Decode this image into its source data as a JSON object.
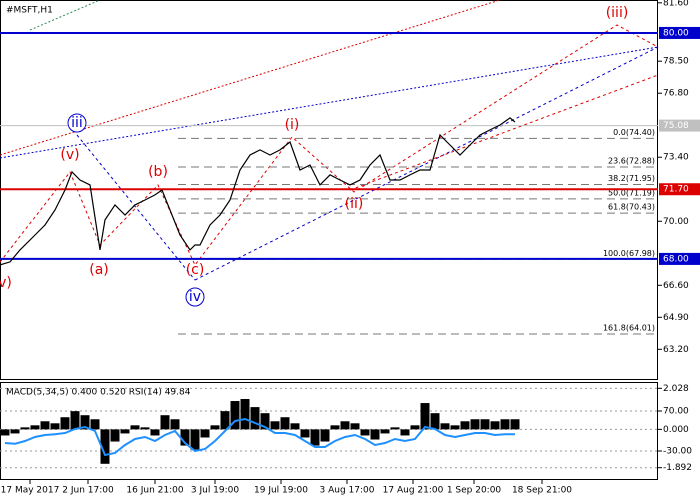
{
  "chart_data": [
    {
      "type": "line",
      "title": "#MSFT,H1",
      "x": [
        0,
        10,
        20,
        35,
        45,
        55,
        65,
        72,
        80,
        90,
        100,
        105,
        115,
        125,
        135,
        145,
        155,
        162,
        170,
        180,
        190,
        195,
        200,
        210,
        220,
        230,
        240,
        250,
        260,
        270,
        280,
        290,
        300,
        310,
        320,
        330,
        340,
        350,
        360,
        370,
        380,
        390,
        400,
        410,
        420,
        430,
        440,
        450,
        460,
        470,
        480,
        490,
        500,
        510,
        515
      ],
      "values": [
        67.68,
        67.84,
        68.48,
        69.27,
        69.8,
        70.6,
        71.66,
        72.62,
        72.19,
        71.93,
        68.48,
        70.07,
        70.87,
        70.33,
        70.87,
        71.13,
        71.4,
        71.66,
        70.6,
        69.27,
        68.48,
        68.74,
        68.74,
        69.8,
        70.33,
        71.13,
        72.72,
        73.52,
        73.79,
        73.52,
        73.79,
        74.21,
        72.72,
        72.99,
        71.93,
        72.46,
        72.19,
        71.93,
        72.19,
        72.99,
        73.52,
        72.19,
        72.19,
        72.46,
        72.72,
        72.72,
        74.58,
        74.05,
        73.52,
        74.05,
        74.58,
        74.85,
        75.11,
        75.49,
        75.27
      ],
      "color": "#000000",
      "xlim": [
        0,
        658
      ],
      "xticks": [
        {
          "value": 30,
          "label": "17 May 2017"
        },
        {
          "value": 88,
          "label": "2 Jun 17:00"
        },
        {
          "value": 155,
          "label": "16 Jun 21:00"
        },
        {
          "value": 215,
          "label": "3 Jul 19:00"
        },
        {
          "value": 281,
          "label": "19 Jul 19:00"
        },
        {
          "value": 347,
          "label": "3 Aug 17:00"
        },
        {
          "value": 413,
          "label": "17 Aug 21:00"
        },
        {
          "value": 474,
          "label": "1 Sep 20:00"
        },
        {
          "value": 542,
          "label": "18 Sep 21:00"
        }
      ],
      "ylim": [
        61.57,
        81.75
      ],
      "yticks": [
        {
          "value": 81.6,
          "label": "81.60"
        },
        {
          "value": 78.5,
          "label": "78.50"
        },
        {
          "value": 76.8,
          "label": "76.80"
        },
        {
          "value": 73.4,
          "label": "73.40"
        },
        {
          "value": 70,
          "label": "70.00"
        },
        {
          "value": 66.6,
          "label": "66.60"
        },
        {
          "value": 64.9,
          "label": "64.90"
        },
        {
          "value": 63.2,
          "label": "63.20"
        }
      ],
      "grid": false,
      "hlines": [
        {
          "value": 80,
          "label": "80.00",
          "color": "#0000cc"
        },
        {
          "value": 71.7,
          "label": "71.70",
          "color": "#dd0000"
        },
        {
          "value": 68,
          "label": "68.00",
          "color": "#0000cc"
        }
      ],
      "current_price": {
        "value": 75.08,
        "label": "75.08",
        "color": "#c0c0c0"
      },
      "fib_levels": [
        {
          "label": "0.0(74.40)",
          "value": 74.4
        },
        {
          "label": "23.6(72.88)",
          "value": 72.88
        },
        {
          "label": "38.2(71.95)",
          "value": 71.95
        },
        {
          "label": "50.0(71.19)",
          "value": 71.19
        },
        {
          "label": "61.8(70.43)",
          "value": 70.43
        },
        {
          "label": "100.0(67.98)",
          "value": 67.98
        },
        {
          "label": "161.8(64.01)",
          "value": 64.01
        }
      ],
      "annotations": [
        {
          "text": "(iii)",
          "color": "#dd0000"
        },
        {
          "text": "iii",
          "color": "#0000cc"
        },
        {
          "text": "(v)",
          "color": "#dd0000"
        },
        {
          "text": "(b)",
          "color": "#dd0000"
        },
        {
          "text": "(a)",
          "color": "#dd0000"
        },
        {
          "text": "(c)",
          "color": "#dd0000"
        },
        {
          "text": "iv",
          "color": "#0000cc"
        },
        {
          "text": "(i)",
          "color": "#dd0000"
        },
        {
          "text": "(ii)",
          "color": "#dd0000"
        },
        {
          "text": "v)",
          "color": "#dd0000"
        }
      ]
    },
    {
      "type": "bar",
      "title": "MACD(5,34,5) 0.400 0.520 RSI(14) 49.84",
      "x": [
        5,
        15,
        25,
        35,
        45,
        55,
        65,
        75,
        85,
        95,
        105,
        115,
        125,
        135,
        145,
        155,
        165,
        175,
        185,
        195,
        205,
        215,
        225,
        235,
        245,
        255,
        265,
        275,
        285,
        295,
        305,
        315,
        325,
        335,
        345,
        355,
        365,
        375,
        385,
        395,
        405,
        415,
        425,
        435,
        445,
        455,
        465,
        475,
        485,
        495,
        505,
        515
      ],
      "xlim": [
        0,
        658
      ],
      "ylim": [
        -2.5,
        2.34
      ],
      "yticks": [
        {
          "value": 2.028,
          "label": "2.028"
        },
        {
          "value": 0,
          "label": "0.000"
        },
        {
          "value": -1.892,
          "label": "-1.892"
        }
      ],
      "y2lim": [
        -102.5,
        142.5
      ],
      "y2ticks": [
        {
          "value": 70,
          "label": "70.00"
        },
        {
          "value": -30,
          "label": "-30.00"
        }
      ],
      "series": [
        {
          "type": "bar",
          "color": "#000000",
          "values": [
            -0.3,
            -0.2,
            0.1,
            0.2,
            0.4,
            0.3,
            0.6,
            0.9,
            0.7,
            0.5,
            -1.7,
            -0.6,
            -0.2,
            0.2,
            0.1,
            -0.3,
            0.7,
            0.5,
            -0.8,
            -1.0,
            -0.4,
            0.2,
            0.9,
            1.4,
            1.5,
            1.1,
            0.8,
            0.4,
            0.6,
            0.3,
            -0.4,
            -0.8,
            -0.6,
            0.2,
            0.4,
            0.3,
            -0.3,
            -0.5,
            -0.2,
            0.1,
            -0.3,
            0.2,
            1.3,
            0.8,
            0.3,
            0.2,
            0.4,
            0.5,
            0.5,
            0.4,
            0.5,
            0.5
          ]
        },
        {
          "type": "line",
          "axis": "y2",
          "color": "#1e90ff",
          "values": [
            -10,
            -12,
            -5,
            5,
            10,
            12,
            15,
            25,
            30,
            20,
            -40,
            -35,
            -15,
            0,
            5,
            -5,
            10,
            20,
            -10,
            -30,
            -25,
            -5,
            20,
            45,
            50,
            40,
            30,
            15,
            15,
            10,
            -5,
            -20,
            -20,
            -5,
            5,
            10,
            0,
            -15,
            -10,
            0,
            -5,
            0,
            30,
            25,
            10,
            5,
            10,
            15,
            15,
            10,
            12,
            12
          ]
        }
      ]
    }
  ]
}
